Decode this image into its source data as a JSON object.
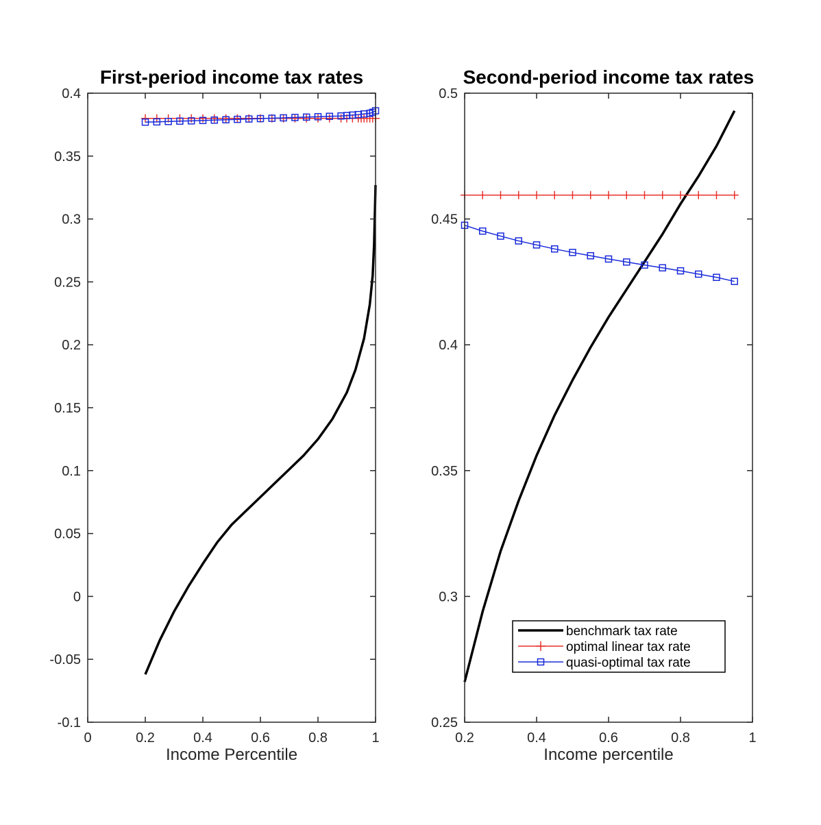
{
  "colors": {
    "benchmark": "#000000",
    "linear": "#e8302a",
    "quasi": "#1a2bd9",
    "axis": "#262626"
  },
  "chart_data": [
    {
      "type": "line",
      "title": "First-period income tax rates",
      "xlabel": "Income Percentile",
      "ylabel": "",
      "xlim": [
        0,
        1
      ],
      "ylim": [
        -0.1,
        0.4
      ],
      "xticks": [
        0,
        0.2,
        0.4,
        0.6,
        0.8,
        1
      ],
      "xtick_labels": [
        "0",
        "0.2",
        "0.4",
        "0.6",
        "0.8",
        "1"
      ],
      "yticks": [
        -0.1,
        -0.05,
        0,
        0.05,
        0.1,
        0.15,
        0.2,
        0.25,
        0.3,
        0.35,
        0.4
      ],
      "ytick_labels": [
        "-0.1",
        "-0.05",
        "0",
        "0.05",
        "0.1",
        "0.15",
        "0.2",
        "0.25",
        "0.3",
        "0.35",
        "0.4"
      ],
      "grid": false,
      "series": [
        {
          "key": "benchmark",
          "marker": "none",
          "x": [
            0.2,
            0.25,
            0.3,
            0.35,
            0.4,
            0.45,
            0.5,
            0.55,
            0.6,
            0.65,
            0.7,
            0.75,
            0.8,
            0.85,
            0.9,
            0.93,
            0.96,
            0.98,
            0.99,
            0.995,
            1.0
          ],
          "y": [
            -0.062,
            -0.035,
            -0.012,
            0.008,
            0.026,
            0.043,
            0.057,
            0.068,
            0.079,
            0.09,
            0.101,
            0.112,
            0.125,
            0.141,
            0.162,
            0.18,
            0.205,
            0.232,
            0.255,
            0.28,
            0.327
          ]
        },
        {
          "key": "linear",
          "marker": "plus",
          "x": [
            0.2,
            0.24,
            0.28,
            0.32,
            0.36,
            0.4,
            0.44,
            0.48,
            0.52,
            0.56,
            0.6,
            0.64,
            0.68,
            0.72,
            0.76,
            0.8,
            0.84,
            0.88,
            0.9,
            0.92,
            0.94,
            0.95,
            0.96,
            0.97,
            0.98,
            0.99,
            1.0
          ],
          "y": [
            0.38,
            0.38,
            0.38,
            0.38,
            0.38,
            0.38,
            0.38,
            0.38,
            0.38,
            0.38,
            0.38,
            0.38,
            0.38,
            0.38,
            0.38,
            0.38,
            0.38,
            0.38,
            0.38,
            0.38,
            0.38,
            0.38,
            0.38,
            0.38,
            0.38,
            0.38,
            0.38
          ]
        },
        {
          "key": "quasi",
          "marker": "square",
          "x": [
            0.2,
            0.24,
            0.28,
            0.32,
            0.36,
            0.4,
            0.44,
            0.48,
            0.52,
            0.56,
            0.6,
            0.64,
            0.68,
            0.72,
            0.76,
            0.8,
            0.84,
            0.88,
            0.9,
            0.92,
            0.94,
            0.96,
            0.98,
            0.99,
            1.0
          ],
          "y": [
            0.377,
            0.3772,
            0.3775,
            0.3778,
            0.378,
            0.3783,
            0.3786,
            0.3789,
            0.3792,
            0.3795,
            0.3798,
            0.3801,
            0.3804,
            0.3807,
            0.381,
            0.3813,
            0.3816,
            0.3819,
            0.3822,
            0.3826,
            0.383,
            0.3835,
            0.384,
            0.3848,
            0.386
          ]
        }
      ]
    },
    {
      "type": "line",
      "title": "Second-period income tax rates",
      "xlabel": "Income  percentile",
      "ylabel": "",
      "xlim": [
        0.2,
        1
      ],
      "ylim": [
        0.25,
        0.5
      ],
      "xticks": [
        0.2,
        0.4,
        0.6,
        0.8,
        1
      ],
      "xtick_labels": [
        "0.2",
        "0.4",
        "0.6",
        "0.8",
        "1"
      ],
      "yticks": [
        0.25,
        0.3,
        0.35,
        0.4,
        0.45,
        0.5
      ],
      "ytick_labels": [
        "0.25",
        "0.3",
        "0.35",
        "0.4",
        "0.45",
        "0.5"
      ],
      "grid": false,
      "legend": {
        "position": "bottom-right",
        "entries": [
          {
            "key": "benchmark",
            "label": "benchmark tax rate"
          },
          {
            "key": "linear",
            "label": "optimal linear tax rate"
          },
          {
            "key": "quasi",
            "label": "quasi-optimal tax rate"
          }
        ]
      },
      "series": [
        {
          "key": "benchmark",
          "marker": "none",
          "x": [
            0.2,
            0.25,
            0.3,
            0.35,
            0.4,
            0.45,
            0.5,
            0.55,
            0.6,
            0.65,
            0.7,
            0.75,
            0.8,
            0.85,
            0.9,
            0.95
          ],
          "y": [
            0.266,
            0.294,
            0.318,
            0.338,
            0.356,
            0.372,
            0.386,
            0.399,
            0.411,
            0.422,
            0.433,
            0.444,
            0.456,
            0.467,
            0.479,
            0.493
          ]
        },
        {
          "key": "linear",
          "marker": "plus",
          "x": [
            0.2,
            0.25,
            0.3,
            0.35,
            0.4,
            0.45,
            0.5,
            0.55,
            0.6,
            0.65,
            0.7,
            0.75,
            0.8,
            0.85,
            0.9,
            0.95
          ],
          "y": [
            0.4595,
            0.4595,
            0.4595,
            0.4595,
            0.4595,
            0.4595,
            0.4595,
            0.4595,
            0.4595,
            0.4595,
            0.4595,
            0.4595,
            0.4595,
            0.4595,
            0.4595,
            0.4595
          ]
        },
        {
          "key": "quasi",
          "marker": "square",
          "x": [
            0.2,
            0.25,
            0.3,
            0.35,
            0.4,
            0.45,
            0.5,
            0.55,
            0.6,
            0.65,
            0.7,
            0.75,
            0.8,
            0.85,
            0.9,
            0.95
          ],
          "y": [
            0.4475,
            0.4452,
            0.4432,
            0.4413,
            0.4397,
            0.4381,
            0.4367,
            0.4354,
            0.4341,
            0.4329,
            0.4317,
            0.4306,
            0.4294,
            0.4281,
            0.4268,
            0.4252
          ]
        }
      ]
    }
  ]
}
